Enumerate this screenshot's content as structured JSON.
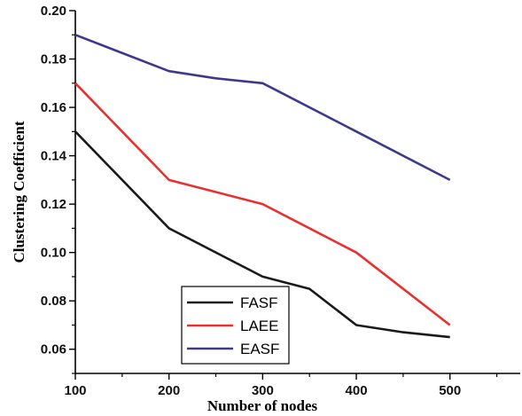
{
  "chart_data": {
    "type": "line",
    "title": "",
    "xlabel": "Number of nodes",
    "ylabel": "Clustering Coefficient",
    "xlim": [
      100,
      575
    ],
    "ylim": [
      0.05,
      0.2
    ],
    "xticks": [
      100,
      200,
      300,
      400,
      500
    ],
    "xtick_labels": [
      "100",
      "200",
      "300",
      "400",
      "500"
    ],
    "yticks": [
      0.06,
      0.08,
      0.1,
      0.12,
      0.14,
      0.16,
      0.18,
      0.2
    ],
    "ytick_labels": [
      "0.06",
      "0.08",
      "0.10",
      "0.12",
      "0.14",
      "0.16",
      "0.18",
      "0.20"
    ],
    "grid": false,
    "legend_position": "bottom-left",
    "series": [
      {
        "name": "FASF",
        "color": "#1a1a1a",
        "x": [
          100,
          200,
          300,
          350,
          400,
          450,
          500
        ],
        "y": [
          0.15,
          0.11,
          0.09,
          0.085,
          0.07,
          0.067,
          0.065
        ]
      },
      {
        "name": "LAEE",
        "color": "#e8302e",
        "x": [
          100,
          200,
          300,
          400,
          500
        ],
        "y": [
          0.17,
          0.13,
          0.12,
          0.1,
          0.07
        ]
      },
      {
        "name": "EASF",
        "color": "#3d3a8c",
        "x": [
          100,
          200,
          250,
          300,
          400,
          500
        ],
        "y": [
          0.19,
          0.175,
          0.172,
          0.17,
          0.15,
          0.13
        ]
      }
    ]
  }
}
